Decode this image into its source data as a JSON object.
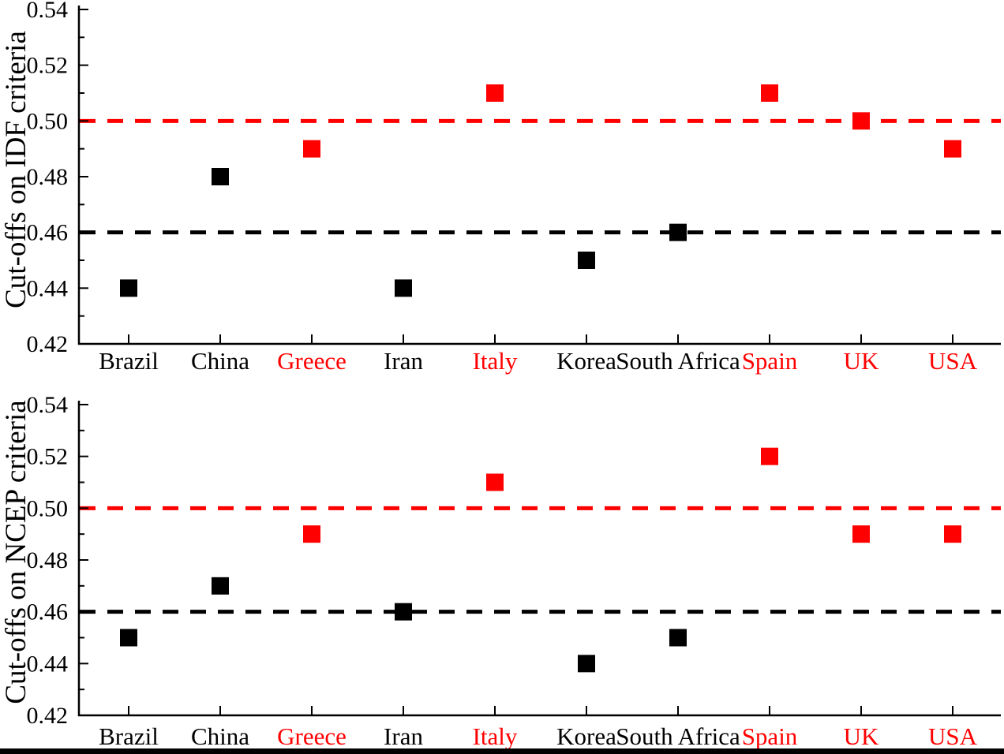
{
  "figure": {
    "bottom_bar_color": "#000000",
    "background_color": "#ffffff",
    "accent_red": "#ff0000",
    "accent_black": "#000000"
  },
  "chart_data": [
    {
      "type": "scatter",
      "title": "",
      "ylabel": "Cut-offs on IDF criteria",
      "xlabel": "",
      "marker": "square",
      "grid": false,
      "categories": [
        "Brazil",
        "China",
        "Greece",
        "Iran",
        "Italy",
        "Korea",
        "South Africa",
        "Spain",
        "UK",
        "USA"
      ],
      "category_colors": [
        "#000000",
        "#000000",
        "#ff0000",
        "#000000",
        "#ff0000",
        "#000000",
        "#000000",
        "#ff0000",
        "#ff0000",
        "#ff0000"
      ],
      "values": [
        0.44,
        0.48,
        0.49,
        0.44,
        0.51,
        0.45,
        0.46,
        0.51,
        0.5,
        0.49
      ],
      "point_colors": [
        "#000000",
        "#000000",
        "#ff0000",
        "#000000",
        "#ff0000",
        "#000000",
        "#000000",
        "#ff0000",
        "#ff0000",
        "#ff0000"
      ],
      "reference_lines": [
        {
          "value": 0.5,
          "color": "#ff0000",
          "style": "dashed"
        },
        {
          "value": 0.46,
          "color": "#000000",
          "style": "dashed"
        }
      ],
      "ylim": [
        0.42,
        0.54
      ],
      "yticks": [
        0.42,
        0.44,
        0.46,
        0.48,
        0.5,
        0.52,
        0.54
      ],
      "ytick_labels": [
        "0.42",
        "0.44",
        "0.46",
        "0.48",
        "0.50",
        "0.52",
        "0.54"
      ]
    },
    {
      "type": "scatter",
      "title": "",
      "ylabel": "Cut-offs on NCEP criteria",
      "xlabel": "",
      "marker": "square",
      "grid": false,
      "categories": [
        "Brazil",
        "China",
        "Greece",
        "Iran",
        "Italy",
        "Korea",
        "South Africa",
        "Spain",
        "UK",
        "USA"
      ],
      "category_colors": [
        "#000000",
        "#000000",
        "#ff0000",
        "#000000",
        "#ff0000",
        "#000000",
        "#000000",
        "#ff0000",
        "#ff0000",
        "#ff0000"
      ],
      "values": [
        0.45,
        0.47,
        0.49,
        0.46,
        0.51,
        0.44,
        0.45,
        0.52,
        0.49,
        0.49
      ],
      "point_colors": [
        "#000000",
        "#000000",
        "#ff0000",
        "#000000",
        "#ff0000",
        "#000000",
        "#000000",
        "#ff0000",
        "#ff0000",
        "#ff0000"
      ],
      "reference_lines": [
        {
          "value": 0.5,
          "color": "#ff0000",
          "style": "dashed"
        },
        {
          "value": 0.46,
          "color": "#000000",
          "style": "dashed"
        }
      ],
      "ylim": [
        0.42,
        0.54
      ],
      "yticks": [
        0.42,
        0.44,
        0.46,
        0.48,
        0.5,
        0.52,
        0.54
      ],
      "ytick_labels": [
        "0.42",
        "0.44",
        "0.46",
        "0.48",
        "0.50",
        "0.52",
        "0.54"
      ]
    }
  ]
}
